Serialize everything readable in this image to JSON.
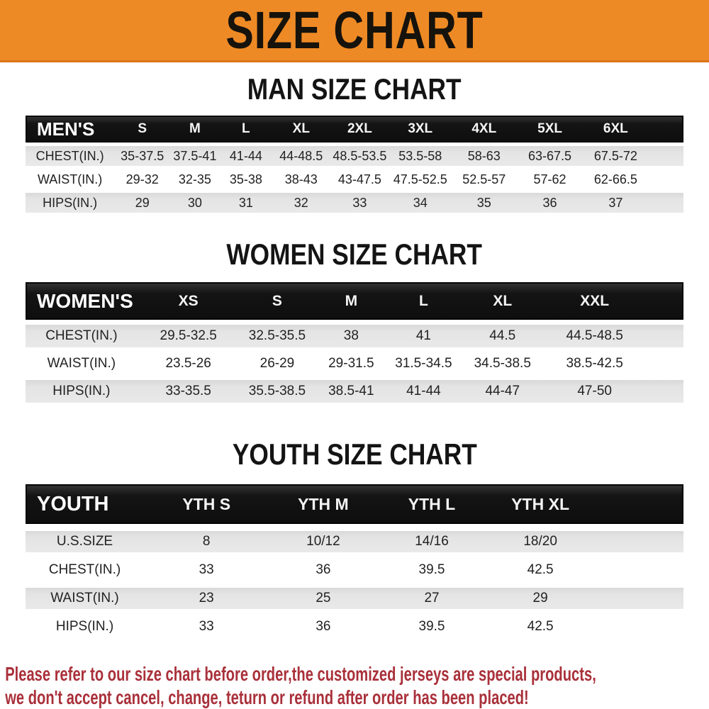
{
  "banner": {
    "title": "SIZE CHART"
  },
  "colors": {
    "banner_bg": "#EE8A25",
    "banner_edge": "#D9751A",
    "header_bg": "#141414",
    "stripe": "#E4E4E4",
    "note_red": "#A9303A"
  },
  "chart_data": [
    {
      "type": "table",
      "title": "MAN SIZE CHART",
      "header": [
        "MEN'S",
        "S",
        "M",
        "L",
        "XL",
        "2XL",
        "3XL",
        "4XL",
        "5XL",
        "6XL"
      ],
      "rows": [
        [
          "CHEST(IN.)",
          "35-37.5",
          "37.5-41",
          "41-44",
          "44-48.5",
          "48.5-53.5",
          "53.5-58",
          "58-63",
          "63-67.5",
          "67.5-72"
        ],
        [
          "WAIST(IN.)",
          "29-32",
          "32-35",
          "35-38",
          "38-43",
          "43-47.5",
          "47.5-52.5",
          "52.5-57",
          "57-62",
          "62-66.5"
        ],
        [
          "HIPS(IN.)",
          "29",
          "30",
          "31",
          "32",
          "33",
          "34",
          "35",
          "36",
          "37"
        ]
      ]
    },
    {
      "type": "table",
      "title": "WOMEN SIZE CHART",
      "header": [
        "WOMEN'S",
        "XS",
        "S",
        "M",
        "L",
        "XL",
        "XXL"
      ],
      "rows": [
        [
          "CHEST(IN.)",
          "29.5-32.5",
          "32.5-35.5",
          "38",
          "41",
          "44.5",
          "44.5-48.5"
        ],
        [
          "WAIST(IN.)",
          "23.5-26",
          "26-29",
          "29-31.5",
          "31.5-34.5",
          "34.5-38.5",
          "38.5-42.5"
        ],
        [
          "HIPS(IN.)",
          "33-35.5",
          "35.5-38.5",
          "38.5-41",
          "41-44",
          "44-47",
          "47-50"
        ]
      ]
    },
    {
      "type": "table",
      "title": "YOUTH SIZE CHART",
      "header": [
        "YOUTH",
        "YTH S",
        "YTH M",
        "YTH L",
        "YTH XL"
      ],
      "rows": [
        [
          "U.S.SIZE",
          "8",
          "10/12",
          "14/16",
          "18/20"
        ],
        [
          "CHEST(IN.)",
          "33",
          "36",
          "39.5",
          "42.5"
        ],
        [
          "WAIST(IN.)",
          "23",
          "25",
          "27",
          "29"
        ],
        [
          "HIPS(IN.)",
          "33",
          "36",
          "39.5",
          "42.5"
        ]
      ]
    }
  ],
  "note": {
    "line1": "Please refer to our size chart before order,the customized jerseys are special products,",
    "line2": "we don't accept cancel, change, teturn or refund after order has been placed!"
  }
}
